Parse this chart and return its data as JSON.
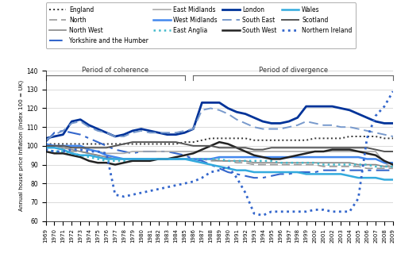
{
  "years": [
    1969,
    1970,
    1971,
    1972,
    1973,
    1974,
    1975,
    1976,
    1977,
    1978,
    1979,
    1980,
    1981,
    1982,
    1983,
    1984,
    1985,
    1986,
    1987,
    1988,
    1989,
    1990,
    1991,
    1992,
    1993,
    1994,
    1995,
    1996,
    1997,
    1998,
    1999,
    2000,
    2001,
    2002,
    2003,
    2004,
    2005,
    2006,
    2007,
    2008,
    2009
  ],
  "England": [
    101,
    101,
    101,
    101,
    101,
    101,
    101,
    101,
    101,
    101,
    101,
    101,
    101,
    101,
    101,
    101,
    102,
    102,
    103,
    104,
    104,
    104,
    104,
    104,
    103,
    103,
    103,
    103,
    103,
    103,
    103,
    104,
    104,
    104,
    104,
    105,
    105,
    105,
    105,
    104,
    104
  ],
  "North": [
    100,
    99,
    98,
    97,
    97,
    96,
    95,
    94,
    93,
    93,
    93,
    93,
    93,
    93,
    93,
    93,
    93,
    93,
    93,
    92,
    92,
    92,
    91,
    91,
    90,
    90,
    90,
    90,
    90,
    90,
    90,
    90,
    89,
    89,
    89,
    89,
    89,
    88,
    88,
    88,
    88
  ],
  "North_West": [
    100,
    100,
    99,
    98,
    97,
    96,
    95,
    94,
    93,
    93,
    93,
    93,
    93,
    93,
    93,
    93,
    93,
    93,
    93,
    93,
    92,
    92,
    92,
    92,
    91,
    91,
    91,
    91,
    91,
    91,
    91,
    91,
    91,
    91,
    91,
    91,
    90,
    90,
    90,
    89,
    89
  ],
  "Yorkshire": [
    102,
    107,
    108,
    107,
    106,
    104,
    102,
    100,
    98,
    97,
    96,
    97,
    97,
    97,
    97,
    96,
    95,
    93,
    92,
    90,
    88,
    86,
    85,
    84,
    83,
    83,
    84,
    85,
    85,
    86,
    86,
    86,
    87,
    87,
    87,
    87,
    87,
    87,
    87,
    87,
    87
  ],
  "East_Midlands": [
    100,
    100,
    100,
    99,
    99,
    98,
    97,
    96,
    96,
    96,
    97,
    97,
    97,
    97,
    97,
    97,
    97,
    97,
    97,
    97,
    97,
    97,
    97,
    97,
    97,
    97,
    97,
    97,
    97,
    97,
    97,
    97,
    97,
    97,
    97,
    97,
    97,
    97,
    97,
    91,
    88
  ],
  "West_Midlands": [
    101,
    100,
    100,
    100,
    100,
    98,
    97,
    95,
    94,
    93,
    93,
    93,
    93,
    93,
    93,
    93,
    93,
    93,
    93,
    93,
    94,
    94,
    94,
    94,
    94,
    94,
    94,
    94,
    94,
    94,
    94,
    94,
    94,
    94,
    94,
    94,
    94,
    93,
    93,
    91,
    91
  ],
  "East_Anglia": [
    98,
    97,
    97,
    96,
    95,
    94,
    93,
    92,
    92,
    92,
    93,
    93,
    93,
    93,
    93,
    93,
    93,
    93,
    93,
    93,
    93,
    92,
    92,
    92,
    92,
    92,
    92,
    91,
    91,
    91,
    91,
    91,
    90,
    90,
    90,
    90,
    90,
    90,
    89,
    89,
    89
  ],
  "London": [
    104,
    105,
    106,
    113,
    114,
    111,
    109,
    107,
    105,
    106,
    108,
    109,
    108,
    107,
    106,
    106,
    107,
    109,
    123,
    123,
    123,
    120,
    118,
    117,
    115,
    113,
    112,
    112,
    113,
    115,
    121,
    121,
    121,
    121,
    120,
    119,
    117,
    115,
    113,
    112,
    112
  ],
  "South_East": [
    103,
    106,
    108,
    112,
    113,
    110,
    108,
    107,
    105,
    105,
    107,
    108,
    107,
    107,
    107,
    107,
    108,
    109,
    119,
    120,
    119,
    117,
    114,
    112,
    110,
    109,
    109,
    109,
    110,
    111,
    113,
    112,
    111,
    111,
    110,
    110,
    109,
    108,
    107,
    106,
    105
  ],
  "South_West": [
    97,
    96,
    96,
    95,
    94,
    92,
    91,
    91,
    90,
    91,
    92,
    92,
    92,
    93,
    93,
    94,
    95,
    96,
    98,
    100,
    102,
    101,
    99,
    97,
    95,
    94,
    93,
    93,
    94,
    95,
    96,
    97,
    97,
    98,
    98,
    98,
    97,
    96,
    95,
    92,
    90
  ],
  "Wales": [
    99,
    99,
    98,
    96,
    95,
    95,
    94,
    93,
    93,
    93,
    93,
    93,
    93,
    93,
    93,
    93,
    93,
    92,
    91,
    90,
    89,
    88,
    87,
    87,
    86,
    86,
    86,
    86,
    86,
    86,
    85,
    85,
    85,
    85,
    85,
    84,
    83,
    83,
    83,
    82,
    82
  ],
  "Scotland": [
    100,
    100,
    100,
    99,
    99,
    99,
    99,
    99,
    100,
    101,
    102,
    102,
    102,
    102,
    102,
    102,
    101,
    100,
    100,
    100,
    99,
    99,
    99,
    99,
    98,
    98,
    99,
    99,
    99,
    99,
    99,
    99,
    99,
    99,
    99,
    99,
    99,
    99,
    98,
    97,
    97
  ],
  "N_Ireland": [
    98,
    97,
    97,
    98,
    98,
    97,
    97,
    96,
    74,
    73,
    74,
    75,
    76,
    77,
    78,
    79,
    80,
    81,
    83,
    86,
    87,
    89,
    83,
    75,
    64,
    63,
    65,
    65,
    65,
    65,
    65,
    66,
    66,
    65,
    65,
    65,
    72,
    104,
    116,
    121,
    129
  ],
  "line_styles": {
    "England": {
      "color": "#333333",
      "ls": "dotted",
      "lw": 1.4,
      "dash": null
    },
    "North": {
      "color": "#999999",
      "ls": "dashed",
      "lw": 1.2,
      "dash": [
        6,
        3
      ]
    },
    "North_West": {
      "color": "#888888",
      "ls": "solid",
      "lw": 1.2,
      "dash": null
    },
    "Yorkshire": {
      "color": "#3366cc",
      "ls": "dashed",
      "lw": 1.5,
      "dash": [
        8,
        3,
        2,
        3
      ]
    },
    "East_Midlands": {
      "color": "#aaaaaa",
      "ls": "solid",
      "lw": 1.2,
      "dash": null
    },
    "West_Midlands": {
      "color": "#4488ee",
      "ls": "solid",
      "lw": 1.8,
      "dash": null
    },
    "East_Anglia": {
      "color": "#44bbcc",
      "ls": "dotted",
      "lw": 1.8,
      "dash": null
    },
    "London": {
      "color": "#003399",
      "ls": "solid",
      "lw": 2.0,
      "dash": null
    },
    "South_East": {
      "color": "#7799cc",
      "ls": "dashed",
      "lw": 1.4,
      "dash": [
        6,
        3
      ]
    },
    "South_West": {
      "color": "#222222",
      "ls": "solid",
      "lw": 1.8,
      "dash": null
    },
    "Wales": {
      "color": "#33aadd",
      "ls": "solid",
      "lw": 1.8,
      "dash": null
    },
    "Scotland": {
      "color": "#555555",
      "ls": "solid",
      "lw": 1.4,
      "dash": null
    },
    "N_Ireland": {
      "color": "#3366cc",
      "ls": "dotted",
      "lw": 2.0,
      "dash": null
    }
  },
  "legend_labels": {
    "England": "England",
    "North": "North",
    "North_West": "North West",
    "Yorkshire": "Yorkshire and the Humber",
    "East_Midlands": "East Midlands",
    "West_Midlands": "West Midlands",
    "East_Anglia": "East Anglia",
    "London": "London",
    "South_East": "South East",
    "South_West": "South West",
    "Wales": "Wales",
    "Scotland": "Scotland",
    "N_Ireland": "Northern Ireland"
  }
}
